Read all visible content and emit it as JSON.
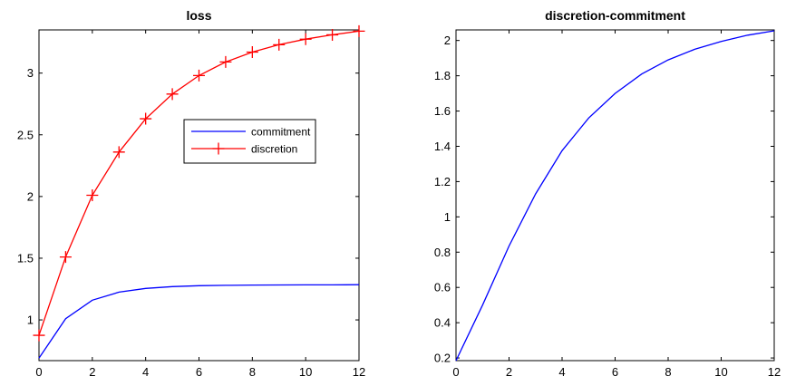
{
  "chart_data": [
    {
      "type": "line",
      "title": "loss",
      "xlabel": "",
      "ylabel": "",
      "xlim": [
        0,
        12
      ],
      "ylim": [
        0.67,
        3.35
      ],
      "x_ticks": [
        0,
        2,
        4,
        6,
        8,
        10,
        12
      ],
      "y_ticks": [
        1,
        1.5,
        2,
        2.5,
        3
      ],
      "x_tick_labels": [
        "0",
        "2",
        "4",
        "6",
        "8",
        "10",
        "12"
      ],
      "y_tick_labels": [
        "1",
        "1.5",
        "2",
        "2.5",
        "3"
      ],
      "grid": false,
      "legend_position": "right",
      "series": [
        {
          "name": "commitment",
          "color": "#0000ff",
          "marker": "none",
          "x": [
            0,
            1,
            2,
            3,
            4,
            5,
            6,
            7,
            8,
            9,
            10,
            11,
            12
          ],
          "y": [
            0.69,
            1.01,
            1.16,
            1.225,
            1.255,
            1.27,
            1.277,
            1.28,
            1.282,
            1.283,
            1.284,
            1.284,
            1.285
          ]
        },
        {
          "name": "discretion",
          "color": "#ff0000",
          "marker": "plus",
          "x": [
            0,
            1,
            2,
            3,
            4,
            5,
            6,
            7,
            8,
            9,
            10,
            11,
            12
          ],
          "y": [
            0.875,
            1.51,
            2.01,
            2.36,
            2.63,
            2.83,
            2.98,
            3.09,
            3.17,
            3.23,
            3.275,
            3.31,
            3.34
          ]
        }
      ]
    },
    {
      "type": "line",
      "title": "discretion-commitment",
      "xlabel": "",
      "ylabel": "",
      "xlim": [
        0,
        12
      ],
      "ylim": [
        0.185,
        2.06
      ],
      "x_ticks": [
        0,
        2,
        4,
        6,
        8,
        10,
        12
      ],
      "y_ticks": [
        0.2,
        0.4,
        0.6,
        0.8,
        1,
        1.2,
        1.4,
        1.6,
        1.8,
        2
      ],
      "x_tick_labels": [
        "0",
        "2",
        "4",
        "6",
        "8",
        "10",
        "12"
      ],
      "y_tick_labels": [
        "0.2",
        "0.4",
        "0.6",
        "0.8",
        "1",
        "1.2",
        "1.4",
        "1.6",
        "1.8",
        "2"
      ],
      "grid": false,
      "series": [
        {
          "color": "#0000ff",
          "marker": "none",
          "x": [
            0,
            1,
            2,
            3,
            4,
            5,
            6,
            7,
            8,
            9,
            10,
            11,
            12
          ],
          "y": [
            0.185,
            0.5,
            0.835,
            1.13,
            1.375,
            1.56,
            1.7,
            1.81,
            1.89,
            1.95,
            1.995,
            2.03,
            2.055
          ]
        }
      ]
    }
  ]
}
